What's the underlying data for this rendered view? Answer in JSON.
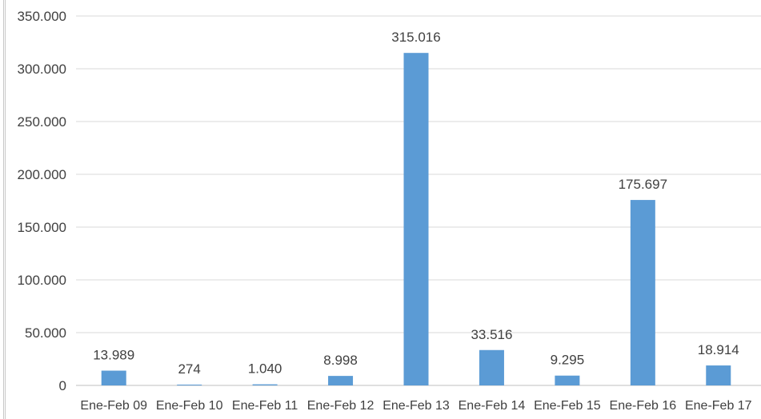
{
  "chart_data": {
    "type": "bar",
    "title": "",
    "xlabel": "",
    "ylabel": "",
    "categories": [
      "Ene-Feb 09",
      "Ene-Feb 10",
      "Ene-Feb 11",
      "Ene-Feb 12",
      "Ene-Feb 13",
      "Ene-Feb 14",
      "Ene-Feb 15",
      "Ene-Feb 16",
      "Ene-Feb 17"
    ],
    "values": [
      13989,
      274,
      1040,
      8998,
      315016,
      33516,
      9295,
      175697,
      18914
    ],
    "data_labels": [
      "13.989",
      "274",
      "1.040",
      "8.998",
      "315.016",
      "33.516",
      "9.295",
      "175.697",
      "18.914"
    ],
    "ylim": [
      0,
      350000
    ],
    "yticks": [
      0,
      50000,
      100000,
      150000,
      200000,
      250000,
      300000,
      350000
    ],
    "ytick_labels": [
      "0",
      "50.000",
      "100.000",
      "150.000",
      "200.000",
      "250.000",
      "300.000",
      "350.000"
    ],
    "grid": true,
    "legend": "none",
    "colors": {
      "bar": "#5b9bd5",
      "grid": "#d9d9d9",
      "axis": "#bfbfbf",
      "text": "#404040"
    }
  }
}
